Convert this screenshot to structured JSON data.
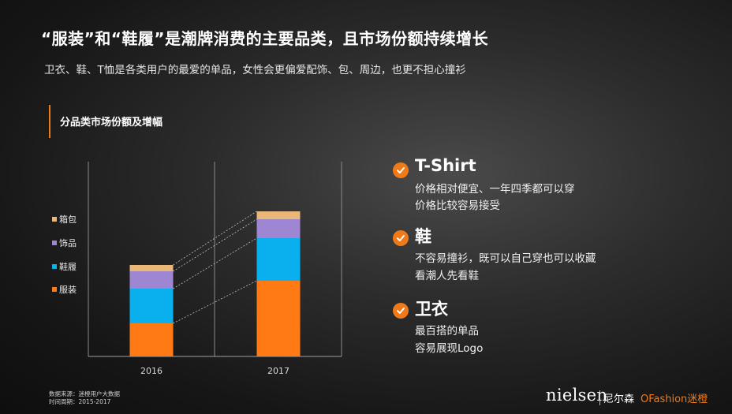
{
  "header": {
    "title": "“服装”和“鞋履”是潮牌消费的主要品类，且市场份额持续增长",
    "subtitle": "卫衣、鞋、T恤是各类用户的最爱的单品，女性会更偏爱配饰、包、周边，也更不担心撞衫"
  },
  "section": {
    "title": "分品类市场份额及增幅"
  },
  "colors": {
    "accent": "#f07a1a",
    "clothing": "#ff7a14",
    "shoes": "#0ab0ee",
    "accessories": "#9e86d2",
    "bags": "#e9b878"
  },
  "chart_data": {
    "type": "bar",
    "stacked": true,
    "categories": [
      "2016",
      "2017"
    ],
    "series": [
      {
        "name": "服装",
        "values": [
          21,
          48
        ],
        "color": "#ff7a14"
      },
      {
        "name": "鞋履",
        "values": [
          22,
          27
        ],
        "color": "#0ab0ee"
      },
      {
        "name": "饰品",
        "values": [
          11,
          12
        ],
        "color": "#9e86d2"
      },
      {
        "name": "箱包",
        "values": [
          4,
          5
        ],
        "color": "#e9b878"
      }
    ],
    "legend_order": [
      "箱包",
      "饰品",
      "鞋履",
      "服装"
    ],
    "legend_position": "left",
    "connector_lines": true,
    "y_axis_visible": false
  },
  "highlights": [
    {
      "title": "T-Shirt",
      "lines": [
        "价格相对便宜、一年四季都可以穿",
        "价格比较容易接受"
      ],
      "icon": "check-icon"
    },
    {
      "title": "鞋",
      "lines": [
        "不容易撞衫，既可以自己穿也可以收藏",
        "看潮人先看鞋"
      ],
      "icon": "check-icon"
    },
    {
      "title": "卫衣",
      "lines": [
        "最百搭的单品",
        "容易展现Logo"
      ],
      "icon": "check-icon"
    }
  ],
  "footer": {
    "source_line1": "数据来源：迷橙用户大数据",
    "source_line2": "时间周期：2015-2017",
    "logo_nielsen": "nielsen",
    "logo_cn": "尼尔森",
    "logo_fashion": "OFashion迷橙"
  }
}
